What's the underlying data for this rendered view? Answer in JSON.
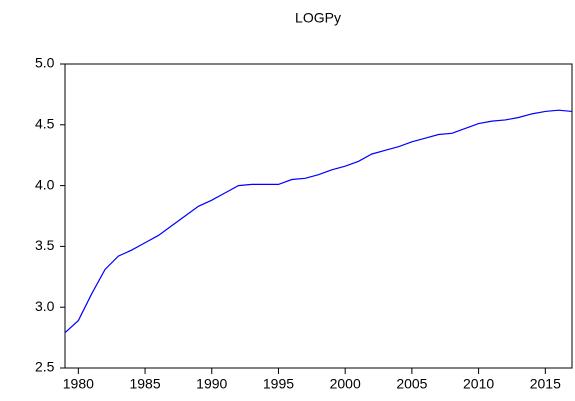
{
  "chart_data": {
    "type": "line",
    "title": "LOGPy",
    "x": [
      1979,
      1980,
      1981,
      1982,
      1983,
      1984,
      1985,
      1986,
      1987,
      1988,
      1989,
      1990,
      1991,
      1992,
      1993,
      1994,
      1995,
      1996,
      1997,
      1998,
      1999,
      2000,
      2001,
      2002,
      2003,
      2004,
      2005,
      2006,
      2007,
      2008,
      2009,
      2010,
      2011,
      2012,
      2013,
      2014,
      2015,
      2016,
      2017
    ],
    "series": [
      {
        "color": "#0000ff",
        "values": [
          2.79,
          2.89,
          3.11,
          3.31,
          3.42,
          3.47,
          3.53,
          3.59,
          3.67,
          3.75,
          3.83,
          3.88,
          3.94,
          4.0,
          4.01,
          4.01,
          4.01,
          4.05,
          4.06,
          4.09,
          4.13,
          4.16,
          4.2,
          4.26,
          4.29,
          4.32,
          4.36,
          4.39,
          4.42,
          4.43,
          4.47,
          4.51,
          4.53,
          4.54,
          4.56,
          4.59,
          4.61,
          4.62,
          4.61
        ]
      }
    ],
    "xlim": [
      1979,
      2017
    ],
    "xticks": [
      1980,
      1985,
      1990,
      1995,
      2000,
      2005,
      2010,
      2015
    ],
    "ylim": [
      2.5,
      5.0
    ],
    "yticks": [
      {
        "value": 2.5,
        "label": "2.5"
      },
      {
        "value": 3.0,
        "label": "3.0"
      },
      {
        "value": 3.5,
        "label": "3.5"
      },
      {
        "value": 4.0,
        "label": "4.0"
      },
      {
        "value": 4.5,
        "label": "4.5"
      },
      {
        "value": 5.0,
        "label": "5.0"
      }
    ],
    "grid": false
  }
}
